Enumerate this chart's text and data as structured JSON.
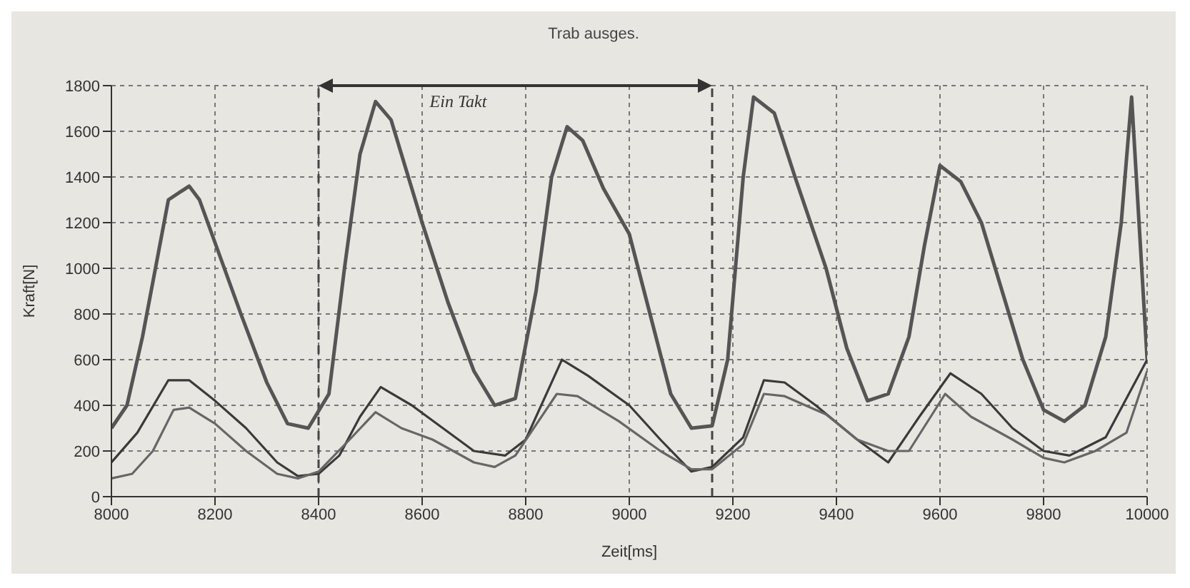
{
  "chart_data": {
    "type": "line",
    "title": "Trab ausges.",
    "xlabel": "Zeit[ms]",
    "ylabel": "Kraft[N]",
    "annotations": [
      "Ein Takt"
    ],
    "xlim": [
      8000,
      10000
    ],
    "xticks": [
      8000,
      8200,
      8400,
      8600,
      8800,
      9000,
      9200,
      9400,
      9600,
      9800,
      10000
    ],
    "ylim": [
      0,
      1800
    ],
    "yticks": [
      0,
      200,
      400,
      600,
      800,
      1000,
      1200,
      1400,
      1600,
      1800
    ],
    "grid": true,
    "marker": "none",
    "line_style": "solid",
    "ref_lines": [
      {
        "axis": "x",
        "value": 8400,
        "color": "#444444",
        "line_style": "dashed"
      },
      {
        "axis": "x",
        "value": 9160,
        "color": "#444444",
        "line_style": "dashed"
      }
    ],
    "series": [
      {
        "color": "#555555",
        "x": [
          8000,
          8030,
          8060,
          8110,
          8150,
          8170,
          8250,
          8300,
          8340,
          8380,
          8420,
          8450,
          8480,
          8510,
          8540,
          8600,
          8650,
          8700,
          8740,
          8780,
          8820,
          8850,
          8880,
          8910,
          8950,
          9000,
          9040,
          9080,
          9120,
          9160,
          9190,
          9220,
          9240,
          9280,
          9320,
          9380,
          9420,
          9460,
          9500,
          9540,
          9570,
          9600,
          9640,
          9680,
          9720,
          9760,
          9800,
          9840,
          9880,
          9920,
          9950,
          9970,
          10000
        ],
        "values": [
          300,
          400,
          700,
          1300,
          1360,
          1300,
          800,
          500,
          320,
          300,
          450,
          1000,
          1500,
          1730,
          1650,
          1200,
          850,
          550,
          400,
          430,
          900,
          1400,
          1620,
          1560,
          1350,
          1150,
          800,
          450,
          300,
          310,
          600,
          1400,
          1750,
          1680,
          1400,
          1000,
          650,
          420,
          450,
          700,
          1100,
          1450,
          1380,
          1200,
          900,
          600,
          380,
          330,
          400,
          700,
          1200,
          1750,
          600
        ]
      },
      {
        "color": "#3a3a3a",
        "x": [
          8000,
          8050,
          8110,
          8150,
          8200,
          8260,
          8320,
          8360,
          8400,
          8440,
          8480,
          8520,
          8580,
          8640,
          8700,
          8760,
          8800,
          8870,
          8920,
          9000,
          9060,
          9120,
          9160,
          9220,
          9260,
          9300,
          9360,
          9440,
          9500,
          9560,
          9620,
          9680,
          9740,
          9800,
          9850,
          9920,
          10000
        ],
        "values": [
          150,
          280,
          510,
          510,
          420,
          300,
          150,
          90,
          100,
          180,
          350,
          480,
          400,
          300,
          200,
          180,
          250,
          600,
          530,
          400,
          250,
          110,
          130,
          260,
          510,
          500,
          400,
          250,
          150,
          350,
          540,
          450,
          300,
          200,
          180,
          260,
          600
        ]
      },
      {
        "color": "#666666",
        "x": [
          8000,
          8040,
          8080,
          8120,
          8150,
          8200,
          8260,
          8320,
          8360,
          8400,
          8460,
          8510,
          8560,
          8620,
          8700,
          8740,
          8780,
          8860,
          8900,
          8980,
          9060,
          9120,
          9160,
          9220,
          9260,
          9300,
          9380,
          9440,
          9500,
          9540,
          9610,
          9660,
          9740,
          9800,
          9840,
          9900,
          9960,
          10000
        ],
        "values": [
          80,
          100,
          200,
          380,
          390,
          320,
          200,
          100,
          80,
          110,
          250,
          370,
          300,
          250,
          150,
          130,
          180,
          450,
          440,
          330,
          200,
          120,
          120,
          230,
          450,
          440,
          360,
          250,
          200,
          200,
          450,
          350,
          250,
          170,
          150,
          200,
          280,
          550
        ]
      }
    ]
  }
}
